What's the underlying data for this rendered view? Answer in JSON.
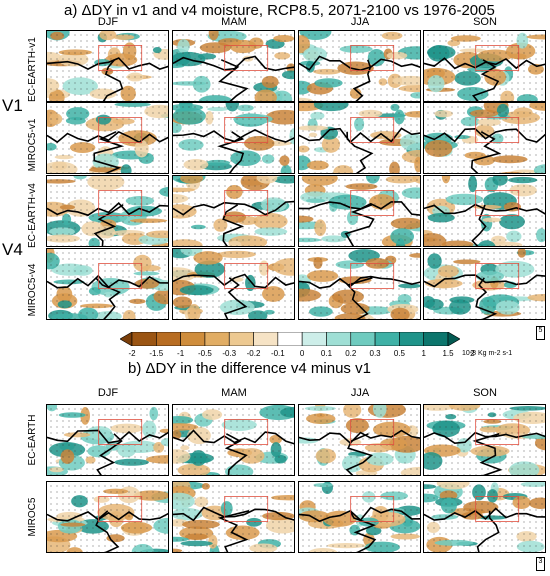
{
  "figure": {
    "title_a": "a) ΔDY in v1 and v4 moisture, RCP8.5, 2071-2100 vs 1976-2005",
    "title_b": "b) ΔDY in the difference v4 minus v1",
    "seasons": [
      "DJF",
      "MAM",
      "JJA",
      "SON"
    ],
    "group_labels": [
      "V1",
      "V4"
    ],
    "rows_a": [
      "EC-EARTH-v1",
      "MIROC5-v1",
      "EC-EARTH-v4",
      "MIROC5-v4"
    ],
    "rows_b": [
      "EC-EARTH",
      "MIROC5"
    ],
    "vector_scale_a": "5",
    "vector_scale_b": "3",
    "colorbar": {
      "labels": [
        "-2",
        "-1.5",
        "-1",
        "-0.5",
        "-0.3",
        "-0.2",
        "-0.1",
        "0",
        "0.1",
        "0.2",
        "0.3",
        "0.5",
        "1",
        "1.5",
        "2"
      ],
      "units": "10-8 Kg m-2 s-1",
      "colors": [
        "#7a3e0a",
        "#9b5513",
        "#b86d22",
        "#cf8d3c",
        "#e1ad64",
        "#edc991",
        "#f6e3c5",
        "#ffffff",
        "#cdeee9",
        "#9fdfd5",
        "#6fcbbf",
        "#3fb1a6",
        "#1f948a",
        "#0c766d",
        "#035a52"
      ]
    }
  }
}
